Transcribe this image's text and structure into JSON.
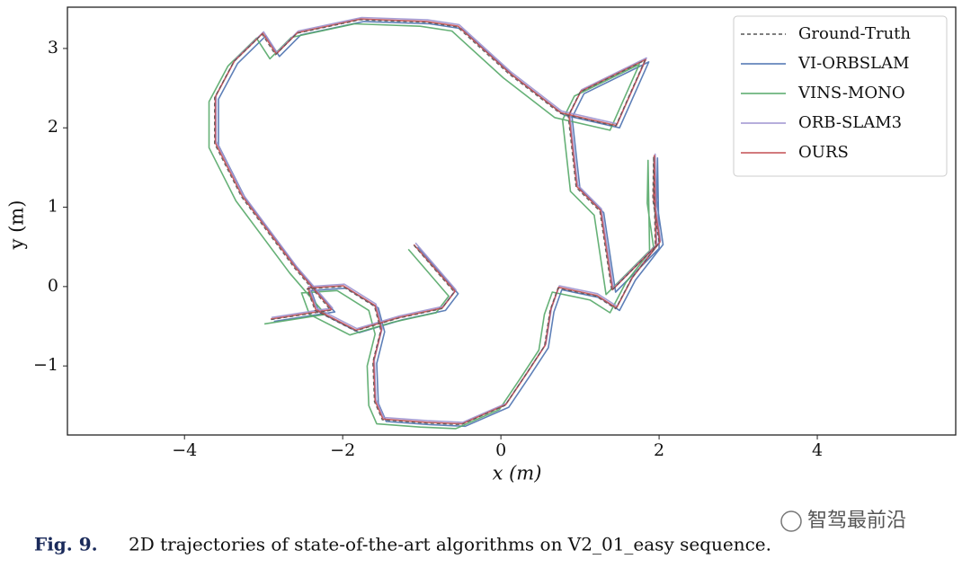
{
  "chart_data": {
    "type": "line",
    "xlabel": "x (m)",
    "ylabel": "y (m)",
    "caption_label": "Fig. 9.",
    "caption": "2D trajectories of state-of-the-art algorithms on V2_01_easy sequence.",
    "watermark": "智驾最前沿",
    "xlim": [
      -5.48,
      5.75
    ],
    "ylim": [
      -1.87,
      3.52
    ],
    "xticks": [
      {
        "value": -4,
        "label": "−4"
      },
      {
        "value": -2,
        "label": "−2"
      },
      0,
      2,
      4
    ],
    "yticks": [
      {
        "value": -1,
        "label": "−1"
      },
      0,
      1,
      2,
      3
    ],
    "legend": "upper right",
    "series": [
      {
        "name": "Ground-Truth",
        "color": "#555555",
        "dashed": true,
        "x": [
          -1.1,
          -0.59,
          -0.75,
          -1.3,
          -1.84,
          -2.35,
          -2.45,
          -2.0,
          -1.6,
          -1.52,
          -1.62,
          -1.6,
          -1.5,
          -0.95,
          -0.5,
          0.05,
          0.32,
          0.55,
          0.62,
          0.72,
          1.2,
          1.45,
          1.65,
          2.0,
          1.92,
          1.93,
          1.95,
          1.4,
          1.25,
          0.95,
          0.85,
          1.0,
          1.82,
          1.45,
          0.75,
          0.1,
          -0.55,
          -0.95,
          -1.78,
          -2.58,
          -2.85,
          -3.02,
          -3.38,
          -3.62,
          -3.62,
          -3.28,
          -2.6,
          -2.15,
          -2.92
        ],
        "values": [
          0.52,
          -0.07,
          -0.28,
          -0.4,
          -0.56,
          -0.3,
          -0.03,
          0.0,
          -0.25,
          -0.55,
          -0.95,
          -1.45,
          -1.68,
          -1.72,
          -1.74,
          -1.5,
          -1.1,
          -0.75,
          -0.3,
          -0.02,
          -0.12,
          -0.28,
          0.1,
          0.55,
          1.1,
          1.64,
          0.5,
          -0.05,
          0.95,
          1.25,
          2.15,
          2.45,
          2.85,
          2.02,
          2.18,
          2.68,
          3.27,
          3.33,
          3.36,
          3.19,
          2.92,
          3.18,
          2.83,
          2.38,
          1.8,
          1.13,
          0.22,
          -0.3,
          -0.42
        ]
      },
      {
        "name": "VI-ORBSLAM",
        "color": "#4c72b0",
        "x": [
          -1.05,
          -0.54,
          -0.7,
          -1.25,
          -1.79,
          -2.3,
          -2.4,
          -1.95,
          -1.55,
          -1.47,
          -1.57,
          -1.55,
          -1.45,
          -0.9,
          -0.45,
          0.1,
          0.37,
          0.6,
          0.67,
          0.77,
          1.25,
          1.5,
          1.7,
          2.05,
          1.97,
          1.98,
          2.0,
          1.45,
          1.3,
          1.0,
          0.9,
          1.05,
          1.87,
          1.5,
          0.8,
          0.15,
          -0.5,
          -0.9,
          -1.73,
          -2.53,
          -2.8,
          -2.97,
          -3.33,
          -3.57,
          -3.57,
          -3.23,
          -2.55,
          -2.1,
          -2.87
        ],
        "values": [
          0.5,
          -0.09,
          -0.3,
          -0.42,
          -0.58,
          -0.32,
          -0.05,
          -0.02,
          -0.27,
          -0.57,
          -0.97,
          -1.47,
          -1.7,
          -1.74,
          -1.76,
          -1.52,
          -1.12,
          -0.77,
          -0.32,
          -0.04,
          -0.14,
          -0.3,
          0.08,
          0.53,
          1.08,
          1.62,
          0.48,
          -0.07,
          0.93,
          1.23,
          2.13,
          2.43,
          2.83,
          2.0,
          2.16,
          2.66,
          3.25,
          3.31,
          3.34,
          3.17,
          2.9,
          3.16,
          2.81,
          2.36,
          1.78,
          1.11,
          0.2,
          -0.32,
          -0.44
        ]
      },
      {
        "name": "VINS-MONO",
        "color": "#55a868",
        "x": [
          -1.17,
          -0.66,
          -0.82,
          -1.37,
          -1.91,
          -2.42,
          -2.52,
          -2.07,
          -1.67,
          -1.59,
          -1.69,
          -1.67,
          -1.57,
          -1.02,
          -0.57,
          -0.02,
          0.25,
          0.48,
          0.55,
          0.65,
          1.13,
          1.38,
          1.58,
          1.93,
          1.85,
          1.86,
          1.88,
          1.33,
          1.18,
          0.88,
          0.78,
          0.93,
          1.75,
          1.38,
          0.68,
          0.03,
          -0.62,
          -1.02,
          -1.85,
          -2.65,
          -2.92,
          -3.09,
          -3.45,
          -3.69,
          -3.69,
          -3.35,
          -2.67,
          -2.22,
          -2.99
        ],
        "values": [
          0.47,
          -0.12,
          -0.33,
          -0.45,
          -0.61,
          -0.35,
          -0.08,
          -0.05,
          -0.3,
          -0.6,
          -1.0,
          -1.5,
          -1.73,
          -1.77,
          -1.79,
          -1.55,
          -1.15,
          -0.8,
          -0.35,
          -0.07,
          -0.17,
          -0.33,
          0.05,
          0.5,
          1.05,
          1.59,
          0.45,
          -0.1,
          0.9,
          1.2,
          2.1,
          2.4,
          2.8,
          1.97,
          2.13,
          2.63,
          3.22,
          3.28,
          3.31,
          3.14,
          2.87,
          3.13,
          2.78,
          2.33,
          1.75,
          1.08,
          0.17,
          -0.35,
          -0.47
        ]
      },
      {
        "name": "ORB-SLAM3",
        "color": "#9d94d0",
        "x": [
          -1.08,
          -0.57,
          -0.73,
          -1.28,
          -1.82,
          -2.33,
          -2.43,
          -1.98,
          -1.58,
          -1.5,
          -1.6,
          -1.58,
          -1.48,
          -0.93,
          -0.48,
          0.07,
          0.34,
          0.57,
          0.64,
          0.74,
          1.22,
          1.47,
          1.67,
          2.02,
          1.94,
          1.95,
          1.97,
          1.42,
          1.27,
          0.97,
          0.87,
          1.02,
          1.84,
          1.47,
          0.77,
          0.12,
          -0.53,
          -0.93,
          -1.76,
          -2.56,
          -2.83,
          -3.0,
          -3.36,
          -3.6,
          -3.6,
          -3.26,
          -2.58,
          -2.13,
          -2.9
        ],
        "values": [
          0.55,
          -0.04,
          -0.25,
          -0.37,
          -0.53,
          -0.27,
          0.0,
          0.03,
          -0.22,
          -0.52,
          -0.92,
          -1.42,
          -1.65,
          -1.69,
          -1.71,
          -1.47,
          -1.07,
          -0.72,
          -0.27,
          0.01,
          -0.09,
          -0.25,
          0.13,
          0.58,
          1.13,
          1.67,
          0.53,
          -0.02,
          0.98,
          1.28,
          2.18,
          2.48,
          2.88,
          2.05,
          2.21,
          2.71,
          3.3,
          3.36,
          3.39,
          3.22,
          2.95,
          3.21,
          2.86,
          2.41,
          1.83,
          1.16,
          0.25,
          -0.27,
          -0.39
        ]
      },
      {
        "name": "OURS",
        "color": "#c44e52",
        "x": [
          -1.1,
          -0.58,
          -0.74,
          -1.29,
          -1.83,
          -2.34,
          -2.44,
          -1.99,
          -1.59,
          -1.51,
          -1.61,
          -1.59,
          -1.49,
          -0.94,
          -0.49,
          0.06,
          0.33,
          0.56,
          0.63,
          0.73,
          1.21,
          1.46,
          1.66,
          2.01,
          1.93,
          1.94,
          1.96,
          1.41,
          1.26,
          0.96,
          0.86,
          1.01,
          1.83,
          1.46,
          0.76,
          0.11,
          -0.54,
          -0.94,
          -1.77,
          -2.57,
          -2.84,
          -3.01,
          -3.37,
          -3.61,
          -3.61,
          -3.27,
          -2.59,
          -2.14,
          -2.91
        ],
        "values": [
          0.53,
          -0.06,
          -0.27,
          -0.39,
          -0.55,
          -0.29,
          -0.02,
          0.01,
          -0.24,
          -0.54,
          -0.94,
          -1.44,
          -1.67,
          -1.71,
          -1.73,
          -1.49,
          -1.09,
          -0.74,
          -0.29,
          -0.01,
          -0.11,
          -0.27,
          0.11,
          0.56,
          1.11,
          1.65,
          0.51,
          -0.04,
          0.96,
          1.26,
          2.16,
          2.46,
          2.86,
          2.03,
          2.19,
          2.69,
          3.28,
          3.34,
          3.37,
          3.2,
          2.93,
          3.19,
          2.84,
          2.39,
          1.81,
          1.14,
          0.23,
          -0.29,
          -0.41
        ]
      }
    ]
  }
}
